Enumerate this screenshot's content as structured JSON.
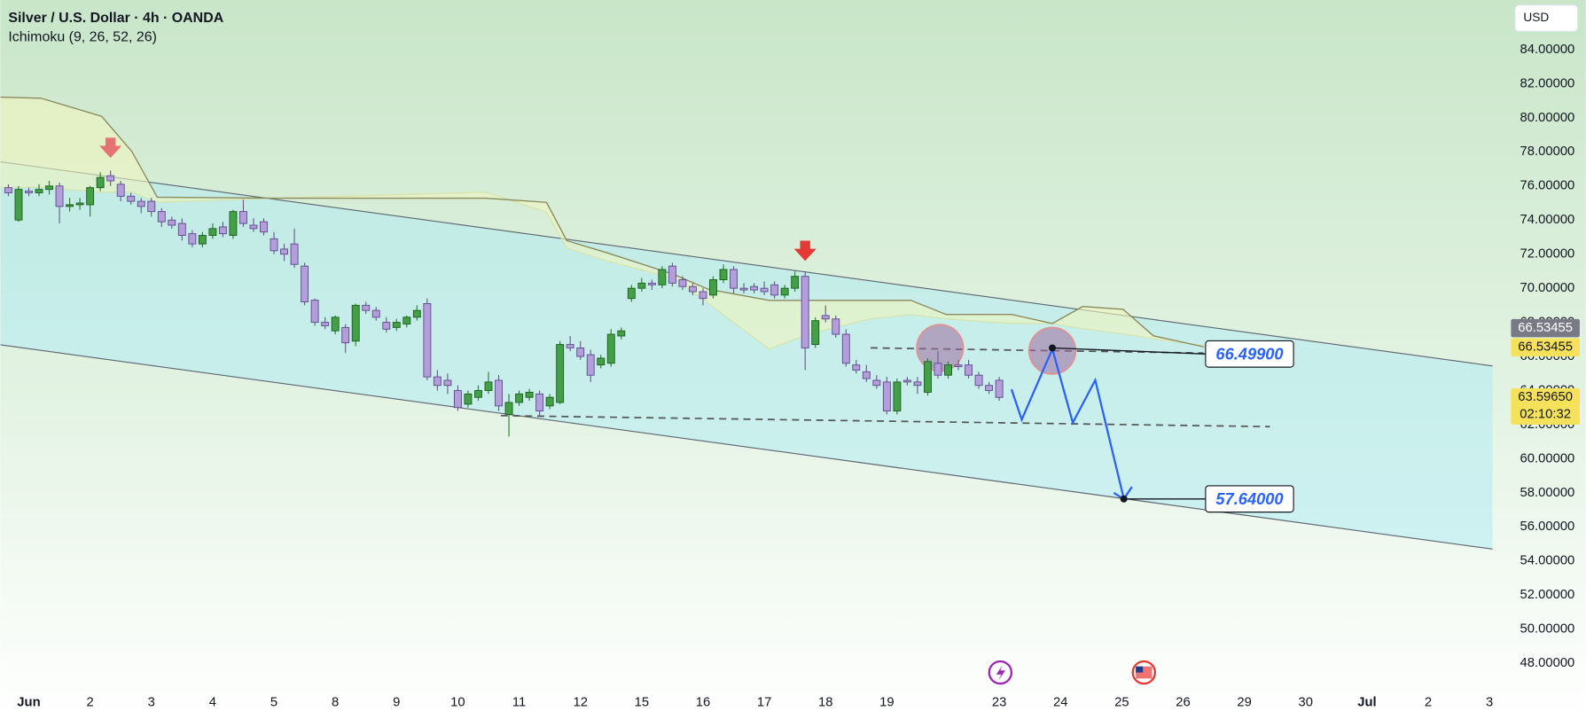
{
  "chart_data": {
    "type": "candlestick",
    "title": "Silver / U.S. Dollar · 4h · OANDA",
    "indicator": "Ichimoku (9, 26, 52, 26)",
    "currency": "USD",
    "up_color": "#43a047",
    "down_color": "#b39ddb",
    "xlim": [
      -2.8,
      144.8
    ],
    "ylim": [
      46.57,
      86.91
    ],
    "xticks": [
      {
        "value": 0,
        "label": "Jun"
      },
      {
        "value": 6,
        "label": "2"
      },
      {
        "value": 12,
        "label": "3"
      },
      {
        "value": 18,
        "label": "4"
      },
      {
        "value": 24,
        "label": "5"
      },
      {
        "value": 30,
        "label": "8"
      },
      {
        "value": 36,
        "label": "9"
      },
      {
        "value": 42,
        "label": "10"
      },
      {
        "value": 48,
        "label": "11"
      },
      {
        "value": 54,
        "label": "12"
      },
      {
        "value": 60,
        "label": "15"
      },
      {
        "value": 66,
        "label": "16"
      },
      {
        "value": 72,
        "label": "17"
      },
      {
        "value": 78,
        "label": "18"
      },
      {
        "value": 84,
        "label": "19"
      },
      {
        "value": 95,
        "label": "23"
      },
      {
        "value": 101,
        "label": "24"
      },
      {
        "value": 107,
        "label": "25"
      },
      {
        "value": 113,
        "label": "26"
      },
      {
        "value": 119,
        "label": "29"
      },
      {
        "value": 125,
        "label": "30"
      },
      {
        "value": 131,
        "label": "Jul"
      },
      {
        "value": 137,
        "label": "2"
      },
      {
        "value": 143,
        "label": "3"
      }
    ],
    "yticks": [
      {
        "value": 48,
        "label": "48.00000"
      },
      {
        "value": 50,
        "label": "50.00000"
      },
      {
        "value": 52,
        "label": "52.00000"
      },
      {
        "value": 54,
        "label": "54.00000"
      },
      {
        "value": 56,
        "label": "56.00000"
      },
      {
        "value": 58,
        "label": "58.00000"
      },
      {
        "value": 60,
        "label": "60.00000"
      },
      {
        "value": 62,
        "label": "62.00000"
      },
      {
        "value": 64,
        "label": "64.00000"
      },
      {
        "value": 66,
        "label": "66.00000"
      },
      {
        "value": 68,
        "label": "68.00000"
      },
      {
        "value": 70,
        "label": "70.00000"
      },
      {
        "value": 72,
        "label": "72.00000"
      },
      {
        "value": 74,
        "label": "74.00000"
      },
      {
        "value": 76,
        "label": "76.00000"
      },
      {
        "value": 78,
        "label": "78.00000"
      },
      {
        "value": 80,
        "label": "80.00000"
      },
      {
        "value": 82,
        "label": "82.00000"
      },
      {
        "value": 84,
        "label": "84.00000"
      }
    ],
    "candles": {
      "x": [
        -2,
        -1,
        0,
        1,
        2,
        3,
        4,
        5,
        6,
        7,
        8,
        9,
        10,
        11,
        12,
        13,
        14,
        15,
        16,
        17,
        18,
        19,
        20,
        21,
        22,
        23,
        24,
        25,
        26,
        27,
        28,
        29,
        30,
        31,
        32,
        33,
        34,
        35,
        36,
        37,
        38,
        39,
        40,
        41,
        42,
        43,
        44,
        45,
        46,
        47,
        48,
        49,
        50,
        51,
        52,
        53,
        54,
        55,
        56,
        57,
        58,
        59,
        60,
        61,
        62,
        63,
        64,
        65,
        66,
        67,
        68,
        69,
        70,
        71,
        72,
        73,
        74,
        75,
        76,
        77,
        78,
        79,
        80,
        81,
        82,
        83,
        84,
        85,
        86,
        87,
        88,
        89,
        90,
        91,
        92,
        93,
        94,
        95
      ],
      "open": [
        75.9,
        74.0,
        75.7,
        75.6,
        75.8,
        76.0,
        74.8,
        74.9,
        74.9,
        75.9,
        76.6,
        76.1,
        75.4,
        75.1,
        75.1,
        74.5,
        74.0,
        73.8,
        73.2,
        72.6,
        73.1,
        73.6,
        73.1,
        74.5,
        73.7,
        73.9,
        72.9,
        72.3,
        72.6,
        71.3,
        69.3,
        68.0,
        67.5,
        67.7,
        66.9,
        69.0,
        68.7,
        68.0,
        67.7,
        67.9,
        68.3,
        69.1,
        64.8,
        64.6,
        64.0,
        63.2,
        63.6,
        64.0,
        64.6,
        62.6,
        63.3,
        63.6,
        63.8,
        63.1,
        63.3,
        66.7,
        66.5,
        66.1,
        65.5,
        65.6,
        67.2,
        69.4,
        70.0,
        70.3,
        70.2,
        71.3,
        70.5,
        70.1,
        69.8,
        69.6,
        70.5,
        71.1,
        70.0,
        70.1,
        70.0,
        70.2,
        69.6,
        70.0,
        70.7,
        66.7,
        68.4,
        68.2,
        67.3,
        65.5,
        65.1,
        64.6,
        64.5,
        62.8,
        64.6,
        64.5,
        63.9,
        65.6,
        64.9,
        65.5,
        65.5,
        64.9,
        64.3,
        64.6
      ],
      "high": [
        76.1,
        76.0,
        75.9,
        76.1,
        76.3,
        76.2,
        75.3,
        75.3,
        76.0,
        76.8,
        76.9,
        76.3,
        75.6,
        75.3,
        75.3,
        74.7,
        74.2,
        74.1,
        73.4,
        73.3,
        73.8,
        73.9,
        74.6,
        75.2,
        74.1,
        74.1,
        73.3,
        72.6,
        73.5,
        71.5,
        69.4,
        68.3,
        68.4,
        67.9,
        69.1,
        69.2,
        68.9,
        68.3,
        68.2,
        68.4,
        69.0,
        69.4,
        65.2,
        65.0,
        64.3,
        64.0,
        64.3,
        65.1,
        64.9,
        63.8,
        64.0,
        64.1,
        64.0,
        63.8,
        66.9,
        67.2,
        66.9,
        66.4,
        66.1,
        67.6,
        67.7,
        70.2,
        70.6,
        70.5,
        71.3,
        71.5,
        70.7,
        70.3,
        70.0,
        70.7,
        71.4,
        71.3,
        70.3,
        70.3,
        70.4,
        70.4,
        70.2,
        71.0,
        71.0,
        68.3,
        69.0,
        68.4,
        67.6,
        65.8,
        65.5,
        64.9,
        64.8,
        64.7,
        64.8,
        64.8,
        65.9,
        66.3,
        65.7,
        65.8,
        65.8,
        65.1,
        64.5,
        64.8
      ],
      "low": [
        75.4,
        73.9,
        75.4,
        75.4,
        75.5,
        73.8,
        74.5,
        74.6,
        74.2,
        75.7,
        76.0,
        75.1,
        74.9,
        74.4,
        74.2,
        73.6,
        73.5,
        72.8,
        72.4,
        72.4,
        72.9,
        73.0,
        72.9,
        73.6,
        73.3,
        73.1,
        72.0,
        71.6,
        71.2,
        69.0,
        67.8,
        67.6,
        67.3,
        66.2,
        66.6,
        68.5,
        68.1,
        67.4,
        67.5,
        67.7,
        68.1,
        64.6,
        64.0,
        63.8,
        62.8,
        63.0,
        63.4,
        63.8,
        62.8,
        61.3,
        63.1,
        63.4,
        62.5,
        62.9,
        63.2,
        66.3,
        65.8,
        64.5,
        65.3,
        65.4,
        67.0,
        69.2,
        69.8,
        69.9,
        70.0,
        70.1,
        69.9,
        69.6,
        69.0,
        69.4,
        70.3,
        69.7,
        69.7,
        69.7,
        69.6,
        69.4,
        69.4,
        69.8,
        65.2,
        66.5,
        68.0,
        67.1,
        65.4,
        65.0,
        64.5,
        64.1,
        62.6,
        62.6,
        64.3,
        63.8,
        63.7,
        64.7,
        64.7,
        65.2,
        64.7,
        64.1,
        63.8,
        63.4
      ],
      "close": [
        75.6,
        75.8,
        75.6,
        75.8,
        76.0,
        74.8,
        74.9,
        75.0,
        75.9,
        76.5,
        76.3,
        75.4,
        75.1,
        74.8,
        74.5,
        73.9,
        73.7,
        73.1,
        72.6,
        73.1,
        73.5,
        73.2,
        74.5,
        73.8,
        73.5,
        73.3,
        72.2,
        72.0,
        71.4,
        69.2,
        68.0,
        67.8,
        68.3,
        66.8,
        69.0,
        68.7,
        68.3,
        67.6,
        68.0,
        68.3,
        68.7,
        64.8,
        64.3,
        64.3,
        63.0,
        63.8,
        64.0,
        64.5,
        63.1,
        63.3,
        63.8,
        63.9,
        62.8,
        63.6,
        66.7,
        66.5,
        66.0,
        64.9,
        65.9,
        67.3,
        67.5,
        70.0,
        70.3,
        70.2,
        71.1,
        70.3,
        70.1,
        69.8,
        69.4,
        70.5,
        71.1,
        70.0,
        69.9,
        69.9,
        69.8,
        69.6,
        70.0,
        70.7,
        66.5,
        68.1,
        68.2,
        67.3,
        65.6,
        65.2,
        64.7,
        64.3,
        62.8,
        64.5,
        64.5,
        64.3,
        65.7,
        64.9,
        65.5,
        65.4,
        64.9,
        64.3,
        64.0,
        63.5965
      ]
    },
    "cloud": {
      "x": [
        -2.77,
        1.19,
        7.13,
        10.1,
        12.57,
        23.96,
        44.75,
        50.69,
        52.67,
        56.63,
        63.07,
        66.53,
        72.48,
        76.44,
        82.38,
        86.34,
        89.8,
        96.24,
        100.2,
        103.17,
        107.13,
        110.1,
        115.05
      ],
      "span_a": [
        75.93,
        75.93,
        75.64,
        75.64,
        75.04,
        75.28,
        75.64,
        74.45,
        72.37,
        71.6,
        70.6,
        69.11,
        66.44,
        67.33,
        68.22,
        68.46,
        68.22,
        67.93,
        67.93,
        67.63,
        67.33,
        67.04,
        66.62
      ],
      "span_b": [
        81.21,
        81.15,
        80.09,
        78.01,
        75.34,
        75.28,
        75.28,
        75.04,
        72.79,
        72.08,
        70.83,
        69.94,
        69.29,
        69.29,
        69.29,
        69.29,
        68.46,
        68.46,
        67.93,
        68.93,
        68.76,
        67.21,
        66.56
      ]
    },
    "channel": {
      "upper": {
        "x": [
          -2.77,
          143.3
        ],
        "y": [
          77.42,
          65.44
        ]
      },
      "lower": {
        "x": [
          -2.77,
          143.3
        ],
        "y": [
          66.68,
          54.7
        ]
      }
    },
    "resistance": {
      "x": [
        82.4,
        115
      ],
      "y": [
        66.5,
        66.2
      ]
    },
    "support": {
      "x": [
        46.2,
        121.5
      ],
      "y": [
        62.53,
        61.88
      ]
    },
    "projection": {
      "x": [
        96.2,
        97.2,
        100.2,
        102.2,
        104.4,
        107.2
      ],
      "y": [
        64.07,
        62.29,
        66.44,
        62.11,
        64.61,
        57.64
      ]
    },
    "callouts": [
      {
        "x": 100.2,
        "value": 66.499,
        "label": "66.49900"
      },
      {
        "x": 107.2,
        "value": 57.64,
        "label": "57.64000"
      }
    ],
    "circles": [
      {
        "x": 89.2,
        "y": 66.5
      },
      {
        "x": 100.2,
        "y": 66.33
      }
    ],
    "arrows": [
      {
        "x": 8,
        "y": 78.0
      },
      {
        "x": 76,
        "y": 71.96
      }
    ],
    "price_labels": [
      {
        "value": 66.53455,
        "label": "66.53455",
        "color": "#787b86"
      },
      {
        "value": 66.53455,
        "label": "66.53455",
        "color": "#f5e15a"
      },
      {
        "value": 63.5965,
        "label": "63.59650",
        "countdown": "02:10:32",
        "color": "#f5e15a"
      }
    ]
  }
}
